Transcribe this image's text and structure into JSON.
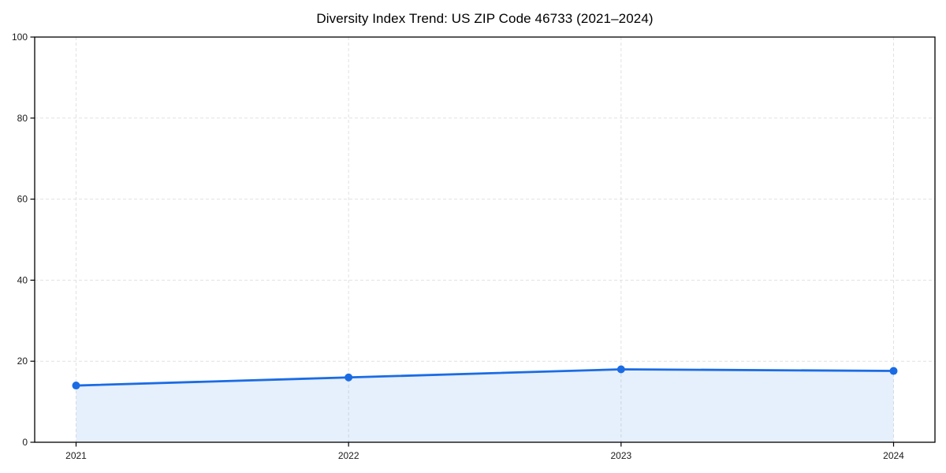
{
  "chart_data": {
    "type": "area",
    "title": "Diversity Index Trend: US ZIP Code 46733 (2021–2024)",
    "x": [
      "2021",
      "2022",
      "2023",
      "2024"
    ],
    "series": [
      {
        "name": "Diversity Index",
        "values": [
          14,
          16,
          18,
          17.6
        ]
      }
    ],
    "xlabel": "",
    "ylabel": "",
    "ylim": [
      0,
      100
    ],
    "yticks": [
      0,
      20,
      40,
      60,
      80,
      100
    ],
    "grid": true,
    "grid_style": "dashed",
    "legend": false,
    "line_color": "#1b6ce4",
    "marker_color": "#1b6ce4",
    "fill_color": "rgba(27,108,228,0.11)",
    "grid_color": "#e1e1e1",
    "spine_color": "#000000",
    "tick_label_color": "#1a1a1a"
  }
}
